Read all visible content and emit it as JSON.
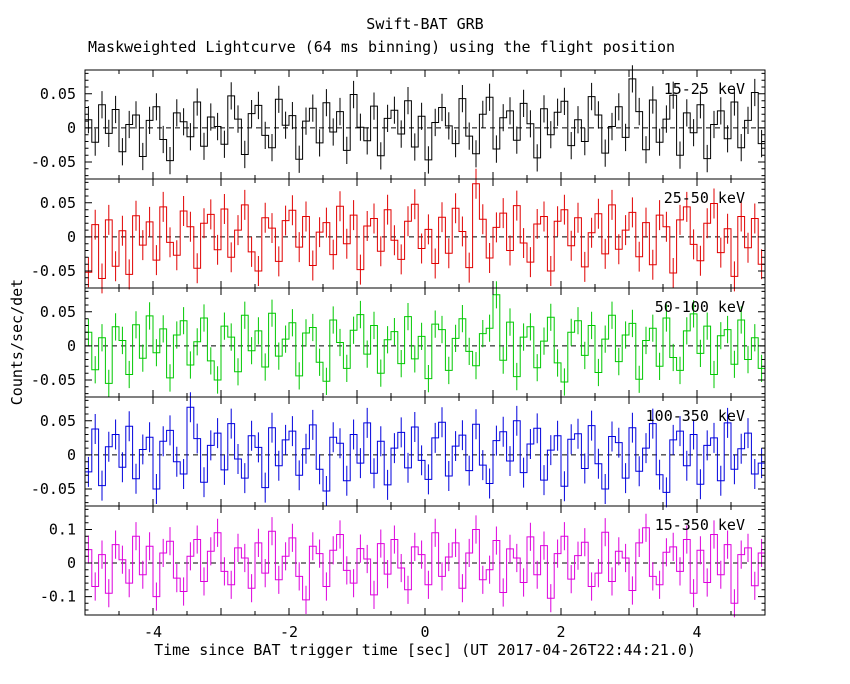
{
  "title": "Swift-BAT GRB",
  "subtitle": "Maskweighted Lightcurve (64 ms binning) using the flight position",
  "xlabel": "Time since BAT trigger time [sec] (UT 2017-04-26T22:44:21.0)",
  "ylabel": "Counts/sec/det",
  "chart_data": {
    "type": "line",
    "style": "stepped-histogram-with-errorbars",
    "title": "Swift-BAT GRB",
    "subtitle": "Maskweighted Lightcurve (64 ms binning) using the flight position",
    "xlabel": "Time since BAT trigger time [sec] (UT 2017-04-26T22:44:21.0)",
    "ylabel": "Counts/sec/det",
    "grid": false,
    "legend": "inline-panel-labels",
    "x_range": [
      -5,
      5
    ],
    "bin_sec": 0.1,
    "x_ticks": [
      {
        "v": -4,
        "label": "-4"
      },
      {
        "v": -2,
        "label": "-2"
      },
      {
        "v": 0,
        "label": "0"
      },
      {
        "v": 2,
        "label": "2"
      },
      {
        "v": 4,
        "label": "4"
      }
    ],
    "panels": [
      {
        "name": "15-25 keV",
        "color": "#000000",
        "ylim": [
          -0.075,
          0.085
        ],
        "y_major": 0.05,
        "y_minor": 0.01,
        "err": 0.02,
        "yticks": [
          {
            "v": 0.05,
            "label": "0.05"
          },
          {
            "v": 0,
            "label": "0"
          },
          {
            "v": -0.05,
            "label": "-0.05"
          }
        ],
        "values": [
          0.012,
          -0.021,
          0.034,
          -0.008,
          0.027,
          -0.035,
          0.005,
          0.019,
          -0.042,
          0.011,
          0.031,
          -0.017,
          -0.048,
          0.022,
          0.009,
          -0.013,
          0.038,
          -0.027,
          0.016,
          0.002,
          -0.024,
          0.047,
          0.013,
          -0.039,
          0.021,
          0.033,
          -0.011,
          -0.029,
          0.042,
          0.004,
          0.018,
          -0.046,
          0.01,
          0.029,
          -0.022,
          0.037,
          -0.006,
          0.024,
          -0.033,
          0.049,
          0.001,
          -0.019,
          0.032,
          -0.041,
          0.014,
          0.026,
          -0.009,
          0.04,
          -0.028,
          0.017,
          -0.047,
          0.008,
          0.03,
          0.003,
          -0.023,
          0.043,
          -0.012,
          -0.038,
          0.02,
          0.045,
          -0.031,
          0.015,
          0.025,
          -0.018,
          0.036,
          0.006,
          -0.044,
          0.028,
          -0.01,
          0.023,
          0.039,
          -0.026,
          0.012,
          -0.02,
          0.046,
          0.019,
          -0.037,
          0.002,
          0.031,
          -0.014,
          0.072,
          0.024,
          -0.032,
          0.041,
          -0.021,
          0.013,
          0.048,
          -0.04,
          0.022,
          -0.007,
          0.034,
          -0.045,
          0.005,
          0.025,
          -0.016,
          0.038,
          -0.029,
          0.011,
          0.052,
          -0.023
        ]
      },
      {
        "name": "25-50 keV",
        "color": "#e00000",
        "ylim": [
          -0.075,
          0.085
        ],
        "y_major": 0.05,
        "y_minor": 0.01,
        "err": 0.022,
        "yticks": [
          {
            "v": 0.05,
            "label": "0.05"
          },
          {
            "v": 0,
            "label": "0"
          },
          {
            "v": -0.05,
            "label": "-0.05"
          }
        ],
        "values": [
          -0.052,
          0.018,
          -0.061,
          0.025,
          -0.043,
          0.009,
          -0.055,
          0.031,
          -0.012,
          0.022,
          -0.034,
          0.044,
          -0.008,
          -0.027,
          0.038,
          0.015,
          -0.046,
          0.02,
          0.033,
          -0.019,
          0.041,
          -0.03,
          0.01,
          0.047,
          -0.022,
          -0.05,
          0.028,
          0.013,
          -0.036,
          0.024,
          0.039,
          -0.015,
          0.03,
          -0.042,
          0.007,
          0.021,
          -0.026,
          0.045,
          -0.01,
          0.032,
          -0.048,
          0.016,
          0.027,
          -0.021,
          0.04,
          -0.005,
          -0.033,
          0.023,
          0.048,
          -0.017,
          0.011,
          -0.039,
          0.029,
          -0.024,
          0.042,
          0.008,
          -0.045,
          0.078,
          0.026,
          -0.031,
          0.014,
          0.035,
          -0.02,
          0.046,
          -0.009,
          -0.037,
          0.019,
          0.03,
          -0.05,
          0.023,
          0.04,
          -0.013,
          0.028,
          -0.044,
          0.006,
          0.034,
          -0.025,
          0.047,
          -0.018,
          0.01,
          0.036,
          -0.029,
          0.021,
          -0.041,
          0.032,
          0.015,
          -0.053,
          0.025,
          0.044,
          -0.011,
          -0.035,
          0.02,
          0.049,
          -0.023,
          0.012,
          -0.058,
          0.03,
          -0.016,
          0.027,
          -0.04
        ]
      },
      {
        "name": "50-100 keV",
        "color": "#00c800",
        "ylim": [
          -0.075,
          0.085
        ],
        "y_major": 0.05,
        "y_minor": 0.01,
        "err": 0.02,
        "yticks": [
          {
            "v": 0.05,
            "label": "0.05"
          },
          {
            "v": 0,
            "label": "0"
          },
          {
            "v": -0.05,
            "label": "-0.05"
          }
        ],
        "values": [
          0.02,
          -0.035,
          0.012,
          -0.055,
          0.028,
          0.008,
          -0.042,
          0.031,
          -0.018,
          0.044,
          -0.01,
          0.025,
          -0.047,
          0.016,
          0.037,
          -0.028,
          0.006,
          0.041,
          -0.022,
          -0.05,
          0.029,
          0.013,
          -0.038,
          0.045,
          -0.007,
          0.022,
          -0.031,
          0.048,
          -0.015,
          0.01,
          0.034,
          -0.044,
          0.019,
          0.027,
          -0.024,
          -0.052,
          0.038,
          0.005,
          -0.033,
          0.023,
          0.046,
          -0.012,
          0.03,
          -0.04,
          0.009,
          0.021,
          -0.026,
          0.043,
          -0.019,
          0.014,
          -0.048,
          0.032,
          0.024,
          -0.036,
          0.011,
          0.04,
          -0.008,
          -0.029,
          0.018,
          0.026,
          0.075,
          -0.021,
          0.035,
          -0.045,
          0.013,
          0.028,
          -0.032,
          0.007,
          0.042,
          -0.025,
          -0.053,
          0.02,
          0.037,
          -0.014,
          0.03,
          -0.039,
          0.01,
          0.045,
          -0.023,
          0.016,
          0.033,
          -0.049,
          0.008,
          0.026,
          -0.03,
          0.041,
          -0.017,
          -0.036,
          0.022,
          0.047,
          -0.011,
          0.029,
          -0.042,
          0.015,
          0.024,
          -0.027,
          0.038,
          -0.02,
          0.012,
          -0.033
        ]
      },
      {
        "name": "100-350 keV",
        "color": "#0000dd",
        "ylim": [
          -0.075,
          0.085
        ],
        "y_major": 0.05,
        "y_minor": 0.01,
        "err": 0.022,
        "yticks": [
          {
            "v": 0.05,
            "label": "0.05"
          },
          {
            "v": 0,
            "label": "0"
          },
          {
            "v": -0.05,
            "label": "-0.05"
          }
        ],
        "values": [
          -0.025,
          0.038,
          -0.045,
          0.012,
          0.03,
          -0.018,
          0.042,
          -0.035,
          0.008,
          0.026,
          -0.05,
          0.02,
          0.036,
          -0.01,
          -0.028,
          0.07,
          0.024,
          -0.04,
          0.014,
          0.032,
          -0.022,
          0.046,
          -0.006,
          -0.034,
          0.028,
          0.011,
          -0.048,
          0.04,
          -0.016,
          0.022,
          0.035,
          -0.03,
          0.009,
          0.044,
          -0.021,
          -0.053,
          0.026,
          0.017,
          -0.038,
          0.03,
          -0.012,
          0.047,
          -0.027,
          0.02,
          -0.044,
          0.01,
          0.033,
          -0.019,
          0.041,
          -0.008,
          -0.036,
          0.025,
          0.048,
          -0.031,
          0.013,
          0.029,
          -0.023,
          0.045,
          -0.015,
          -0.042,
          0.021,
          0.034,
          -0.009,
          0.05,
          -0.026,
          0.016,
          0.039,
          -0.037,
          0.007,
          0.028,
          -0.046,
          0.023,
          0.031,
          -0.02,
          0.043,
          -0.013,
          -0.05,
          0.027,
          0.018,
          -0.034,
          0.04,
          -0.024,
          0.01,
          0.046,
          -0.029,
          -0.055,
          0.022,
          0.035,
          -0.016,
          0.03,
          -0.043,
          0.014,
          0.025,
          -0.038,
          0.047,
          -0.021,
          0.009,
          0.032,
          -0.028,
          -0.012
        ]
      },
      {
        "name": "15-350 keV",
        "color": "#dd00dd",
        "ylim": [
          -0.155,
          0.17
        ],
        "y_major": 0.1,
        "y_minor": 0.02,
        "err": 0.042,
        "yticks": [
          {
            "v": 0.1,
            "label": "0.1"
          },
          {
            "v": 0,
            "label": "0"
          },
          {
            "v": -0.1,
            "label": "-0.1"
          }
        ],
        "values": [
          0.04,
          -0.07,
          0.025,
          -0.09,
          0.055,
          0.01,
          -0.06,
          0.08,
          -0.035,
          0.05,
          -0.1,
          0.03,
          0.065,
          -0.045,
          -0.085,
          0.02,
          0.07,
          -0.055,
          0.035,
          0.09,
          -0.025,
          -0.065,
          0.045,
          0.015,
          -0.075,
          0.06,
          -0.03,
          0.095,
          -0.05,
          0.02,
          0.075,
          -0.04,
          -0.11,
          0.05,
          0.028,
          -0.07,
          0.038,
          0.085,
          -0.022,
          -0.06,
          0.043,
          0.012,
          -0.095,
          0.058,
          -0.033,
          0.07,
          -0.015,
          -0.08,
          0.048,
          0.025,
          -0.065,
          0.09,
          -0.04,
          0.018,
          0.06,
          -0.075,
          0.03,
          0.1,
          -0.05,
          -0.02,
          0.067,
          -0.088,
          0.042,
          0.015,
          -0.058,
          0.078,
          -0.035,
          0.052,
          -0.105,
          0.028,
          0.08,
          -0.048,
          0.022,
          0.062,
          -0.07,
          -0.03,
          0.092,
          -0.055,
          0.035,
          0.015,
          -0.082,
          0.06,
          0.105,
          -0.04,
          -0.065,
          0.032,
          0.048,
          -0.025,
          0.07,
          -0.09,
          0.038,
          -0.058,
          0.085,
          -0.035,
          0.055,
          -0.12,
          0.025,
          0.045,
          -0.068,
          0.03
        ]
      }
    ]
  }
}
